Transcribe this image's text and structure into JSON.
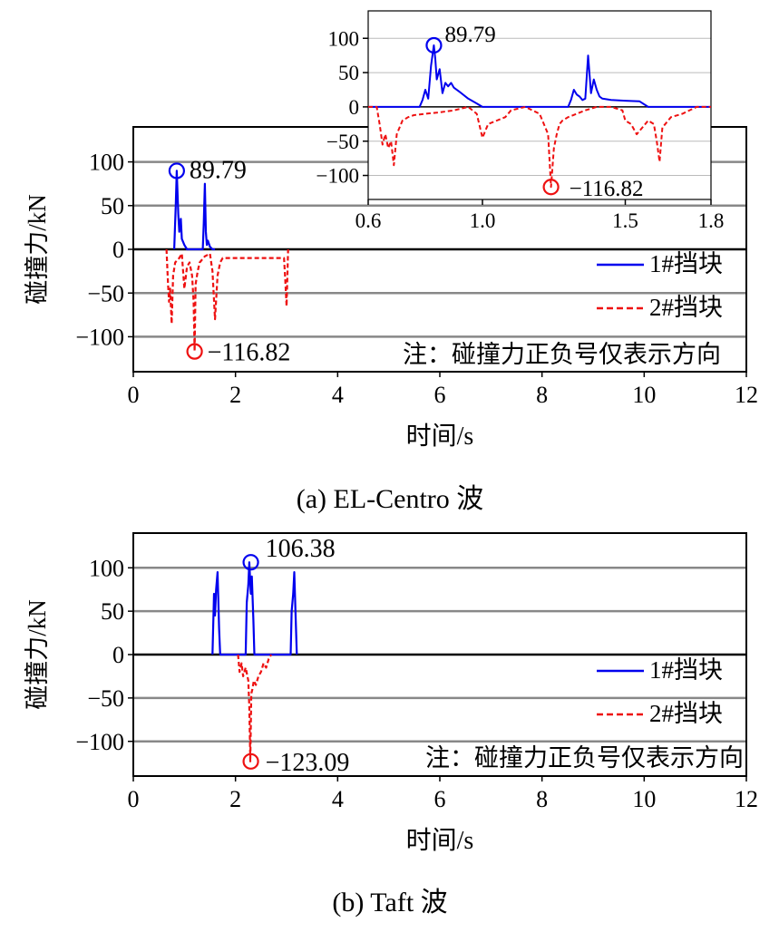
{
  "colors": {
    "blue": "#0000ee",
    "red": "#ee1111",
    "grid": "#888888",
    "axis": "#000000"
  },
  "chart_data": [
    {
      "id": "el-centro-main",
      "type": "line",
      "caption": "(a) EL-Centro 波",
      "xlabel": "时间/s",
      "ylabel": "碰撞力/kN",
      "xlim": [
        0,
        12
      ],
      "ylim": [
        -140,
        140
      ],
      "xticks": [
        0,
        2,
        4,
        6,
        8,
        10,
        12
      ],
      "xtick_labels": [
        "0",
        "2",
        "4",
        "6",
        "8",
        "10",
        "12"
      ],
      "yticks": [
        -100,
        -50,
        0,
        50,
        100
      ],
      "ytick_labels": [
        "−100",
        "−50",
        "0",
        "50",
        "100"
      ],
      "grid": true,
      "legend": {
        "position": "right",
        "entries": [
          "1#挡块",
          "2#挡块"
        ]
      },
      "note": "注：碰撞力正负号仅表示方向",
      "series": [
        {
          "name": "1#挡块",
          "color": "blue",
          "dash": "solid",
          "x": [
            0.8,
            0.83,
            0.85,
            0.88,
            0.9,
            0.93,
            0.95,
            1.0,
            1.05,
            1.36,
            1.38,
            1.4,
            1.42,
            1.44,
            1.46,
            1.5,
            1.55,
            1.6
          ],
          "y": [
            0,
            50,
            89.79,
            40,
            20,
            35,
            12,
            5,
            0,
            0,
            30,
            75,
            20,
            5,
            10,
            3,
            0,
            0
          ]
        },
        {
          "name": "2#挡块",
          "color": "red",
          "dash": "dashed",
          "x": [
            0.65,
            0.68,
            0.7,
            0.72,
            0.75,
            0.78,
            0.82,
            0.9,
            0.95,
            1.0,
            1.05,
            1.1,
            1.15,
            1.18,
            1.2,
            1.22,
            1.26,
            1.3,
            1.4,
            1.5,
            1.55,
            1.6,
            1.65,
            1.7,
            1.75,
            2.95,
            2.97,
            3.0,
            3.03
          ],
          "y": [
            0,
            -40,
            -60,
            -45,
            -85,
            -30,
            -15,
            -10,
            -5,
            -45,
            -20,
            -15,
            -30,
            -60,
            -116.82,
            -40,
            -25,
            -15,
            -8,
            -5,
            -25,
            -80,
            -30,
            -15,
            -10,
            -10,
            -30,
            -65,
            0
          ]
        }
      ],
      "annotations": [
        {
          "label": "89.79",
          "x": 0.85,
          "y": 89.79,
          "color": "blue"
        },
        {
          "label": "−116.82",
          "x": 1.2,
          "y": -116.82,
          "color": "red"
        }
      ]
    },
    {
      "id": "el-centro-inset",
      "type": "line",
      "inset_of": "el-centro-main",
      "xlim": [
        0.6,
        1.8
      ],
      "ylim": [
        -135,
        140
      ],
      "xticks": [
        0.6,
        1.0,
        1.5,
        1.8
      ],
      "xtick_labels": [
        "0.6",
        "1.0",
        "1.5",
        "1.8"
      ],
      "yticks": [
        -100,
        -50,
        0,
        50,
        100
      ],
      "ytick_labels": [
        "−100",
        "−50",
        "0",
        "50",
        "100"
      ],
      "grid": true,
      "series": [
        {
          "name": "1#挡块",
          "color": "blue",
          "dash": "solid",
          "x": [
            0.6,
            0.78,
            0.79,
            0.8,
            0.81,
            0.82,
            0.83,
            0.835,
            0.84,
            0.85,
            0.86,
            0.87,
            0.88,
            0.89,
            0.9,
            0.92,
            0.95,
            0.98,
            1.0,
            1.3,
            1.31,
            1.32,
            1.33,
            1.34,
            1.35,
            1.36,
            1.37,
            1.38,
            1.39,
            1.4,
            1.41,
            1.42,
            1.45,
            1.5,
            1.55,
            1.58,
            1.8
          ],
          "y": [
            0,
            0,
            10,
            25,
            12,
            60,
            89.79,
            70,
            40,
            55,
            20,
            35,
            30,
            35,
            28,
            22,
            12,
            5,
            0,
            0,
            10,
            25,
            18,
            15,
            10,
            12,
            75,
            20,
            40,
            25,
            15,
            12,
            10,
            9,
            8,
            0,
            0
          ]
        },
        {
          "name": "2#挡块",
          "color": "red",
          "dash": "dashed",
          "x": [
            0.6,
            0.63,
            0.64,
            0.65,
            0.66,
            0.67,
            0.68,
            0.69,
            0.7,
            0.71,
            0.72,
            0.74,
            0.76,
            0.8,
            0.85,
            0.9,
            0.95,
            0.98,
            1.0,
            1.02,
            1.05,
            1.08,
            1.1,
            1.15,
            1.2,
            1.22,
            1.23,
            1.24,
            1.25,
            1.26,
            1.27,
            1.28,
            1.3,
            1.33,
            1.36,
            1.4,
            1.45,
            1.49,
            1.5,
            1.52,
            1.54,
            1.56,
            1.58,
            1.6,
            1.61,
            1.62,
            1.63,
            1.64,
            1.66,
            1.7,
            1.75,
            1.8
          ],
          "y": [
            0,
            0,
            -25,
            -55,
            -40,
            -60,
            -50,
            -85,
            -40,
            -30,
            -20,
            -15,
            -12,
            -10,
            -8,
            -5,
            0,
            -10,
            -45,
            -25,
            -20,
            -15,
            -5,
            0,
            -10,
            -30,
            -40,
            -116.82,
            -60,
            -40,
            -25,
            -20,
            -15,
            -10,
            -5,
            0,
            0,
            -5,
            -20,
            -25,
            -40,
            -30,
            -20,
            -25,
            -50,
            -80,
            -30,
            -25,
            -15,
            -10,
            0,
            0
          ]
        }
      ],
      "annotations": [
        {
          "label": "89.79",
          "x": 0.83,
          "y": 89.79,
          "color": "blue"
        },
        {
          "label": "−116.82",
          "x": 1.24,
          "y": -116.82,
          "color": "red"
        }
      ]
    },
    {
      "id": "taft-main",
      "type": "line",
      "caption": "(b) Taft 波",
      "xlabel": "时间/s",
      "ylabel": "碰撞力/kN",
      "xlim": [
        0,
        12
      ],
      "ylim": [
        -140,
        140
      ],
      "xticks": [
        0,
        2,
        4,
        6,
        8,
        10,
        12
      ],
      "xtick_labels": [
        "0",
        "2",
        "4",
        "6",
        "8",
        "10",
        "12"
      ],
      "yticks": [
        -100,
        -50,
        0,
        50,
        100
      ],
      "ytick_labels": [
        "−100",
        "−50",
        "0",
        "50",
        "100"
      ],
      "grid": true,
      "legend": {
        "position": "right",
        "entries": [
          "1#挡块",
          "2#挡块"
        ]
      },
      "note": "注：碰撞力正负号仅表示方向",
      "series": [
        {
          "name": "1#挡块",
          "color": "blue",
          "dash": "solid",
          "x": [
            1.55,
            1.58,
            1.6,
            1.62,
            1.65,
            1.68,
            1.7,
            2.2,
            2.22,
            2.25,
            2.27,
            2.3,
            2.32,
            2.35,
            2.37,
            3.08,
            3.1,
            3.13,
            3.15,
            3.18,
            3.2
          ],
          "y": [
            0,
            70,
            45,
            75,
            95,
            30,
            0,
            0,
            60,
            80,
            106.38,
            70,
            90,
            40,
            0,
            0,
            50,
            70,
            95,
            40,
            0
          ]
        },
        {
          "name": "2#挡块",
          "color": "red",
          "dash": "dashed",
          "x": [
            2.05,
            2.08,
            2.12,
            2.15,
            2.2,
            2.25,
            2.27,
            2.29,
            2.31,
            2.33,
            2.36,
            2.4,
            2.45,
            2.5,
            2.55,
            2.6,
            2.65,
            2.7
          ],
          "y": [
            0,
            -20,
            -10,
            -25,
            -15,
            -30,
            -60,
            -123.09,
            -45,
            -40,
            -30,
            -35,
            -25,
            -20,
            -10,
            -15,
            -5,
            0
          ]
        }
      ],
      "annotations": [
        {
          "label": "106.38",
          "x": 2.3,
          "y": 106.38,
          "color": "blue"
        },
        {
          "label": "−123.09",
          "x": 2.3,
          "y": -123.09,
          "color": "red"
        }
      ]
    }
  ]
}
